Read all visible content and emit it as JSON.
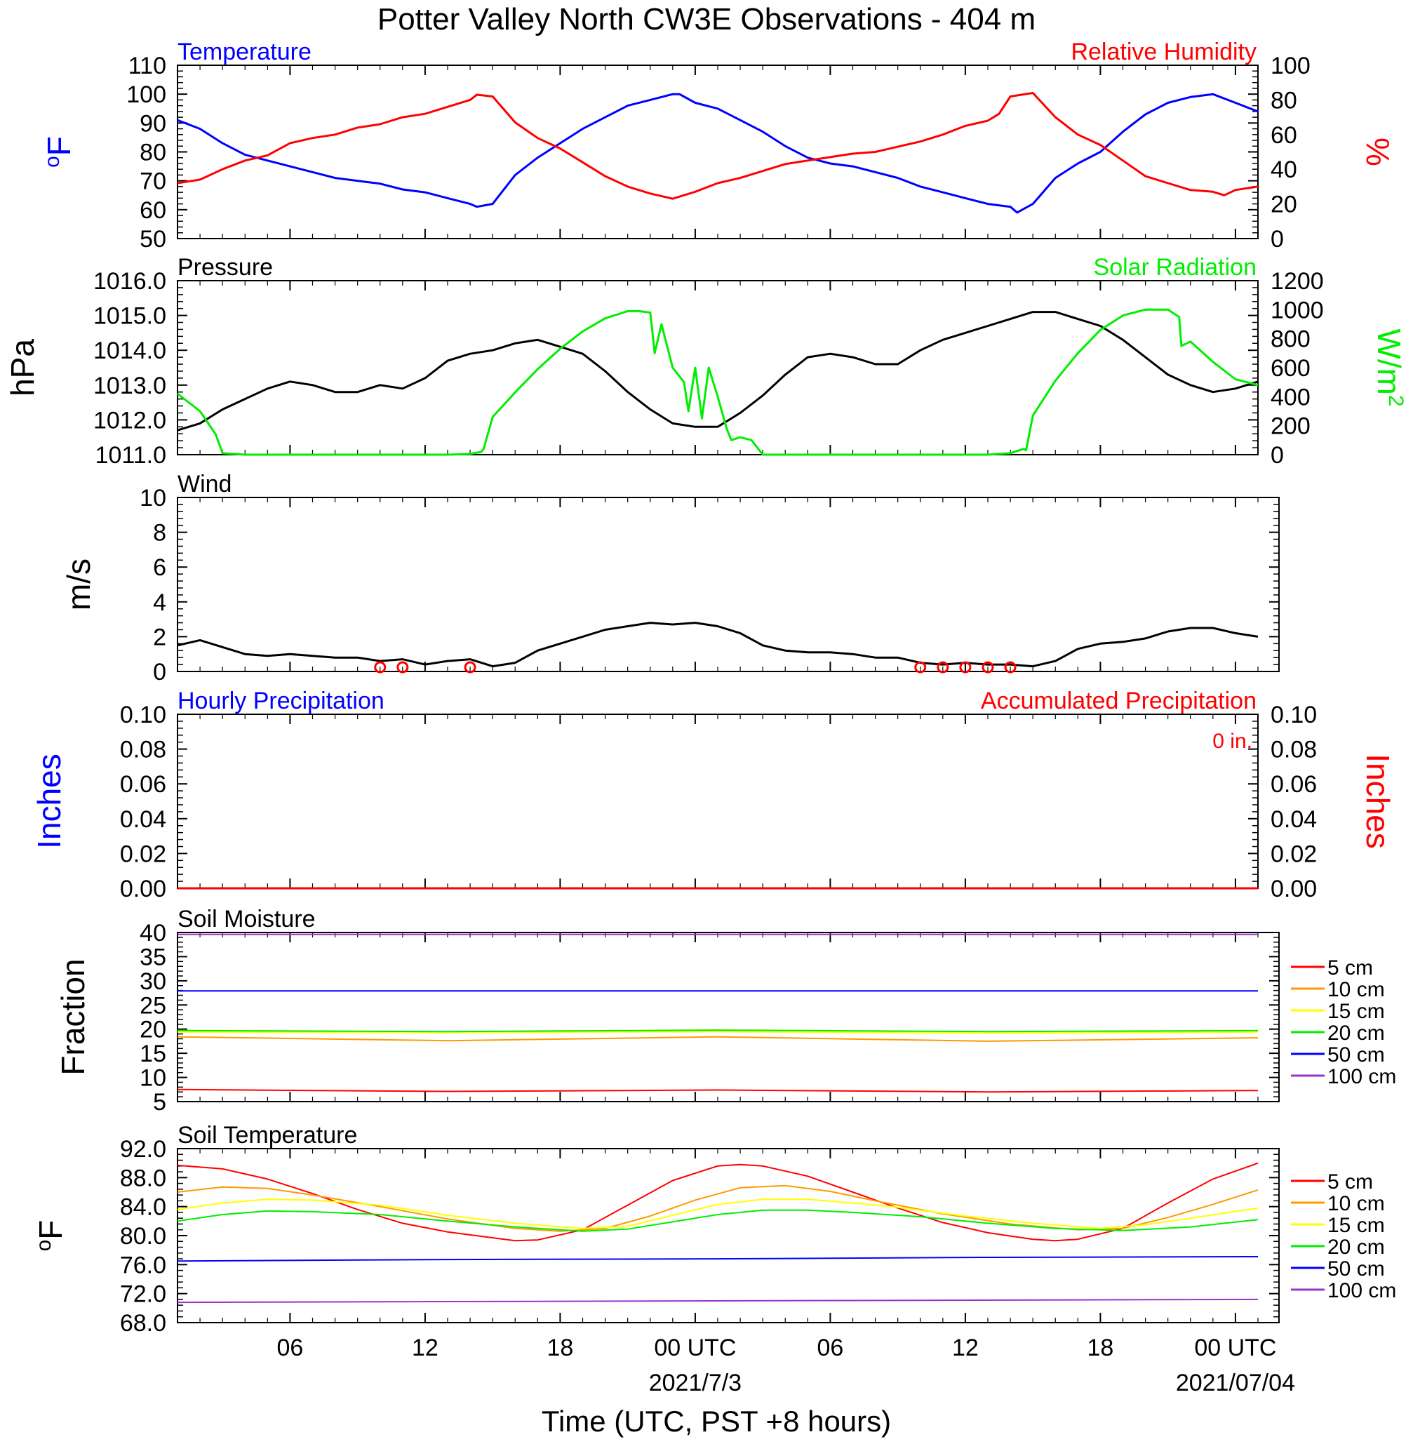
{
  "title": "Potter Valley North CW3E Observations - 404 m",
  "colors": {
    "blue": "#0000ff",
    "red": "#ff0000",
    "green": "#00ee00",
    "black": "#000000",
    "orange": "#ff9900",
    "yellow": "#ffff00",
    "purple": "#9933cc"
  },
  "time_axis": {
    "xlabel": "Time (UTC, PST +8 hours)",
    "range_hours": [
      0,
      48
    ],
    "ticks": [
      {
        "h": 5,
        "label": "06"
      },
      {
        "h": 11,
        "label": "12"
      },
      {
        "h": 17,
        "label": "18"
      },
      {
        "h": 23,
        "label": "00 UTC"
      },
      {
        "h": 29,
        "label": "06"
      },
      {
        "h": 35,
        "label": "12"
      },
      {
        "h": 41,
        "label": "18"
      },
      {
        "h": 47,
        "label": "00 UTC"
      }
    ],
    "date_labels": [
      {
        "h": 23,
        "label": "2021/7/3"
      },
      {
        "h": 47,
        "label": "2021/07/04"
      }
    ]
  },
  "chart_data": [
    {
      "id": "temp_rh",
      "type": "line",
      "left_title": "Temperature",
      "right_title": "Relative Humidity",
      "ylabel": "oF",
      "y2label": "%",
      "ylim": [
        50,
        110
      ],
      "y2lim": [
        0,
        100
      ],
      "yticks": [
        "50",
        "60",
        "70",
        "80",
        "90",
        "100",
        "110"
      ],
      "y2ticks": [
        "0",
        "20",
        "40",
        "60",
        "80",
        "100"
      ],
      "series": [
        {
          "name": "Temperature",
          "color": "blue",
          "axis": "left",
          "x": [
            0,
            1,
            2,
            3,
            4,
            5,
            6,
            7,
            8,
            9,
            10,
            11,
            12,
            13,
            13.3,
            14,
            15,
            16,
            17,
            18,
            19,
            20,
            21,
            22,
            22.3,
            23,
            24,
            25,
            26,
            27,
            28,
            29,
            30,
            31,
            32,
            33,
            34,
            35,
            36,
            37,
            37.3,
            38,
            39,
            40,
            41,
            42,
            43,
            44,
            45,
            46,
            47,
            48
          ],
          "y": [
            91,
            88,
            83,
            79,
            77,
            75,
            73,
            71,
            70,
            69,
            67,
            66,
            64,
            62,
            61,
            62,
            72,
            78,
            83,
            88,
            92,
            96,
            98,
            100,
            100,
            97,
            95,
            91,
            87,
            82,
            78,
            76,
            75,
            73,
            71,
            68,
            66,
            64,
            62,
            61,
            59,
            62,
            71,
            76,
            80,
            87,
            93,
            97,
            99,
            100,
            97,
            94
          ]
        },
        {
          "name": "Relative Humidity",
          "color": "red",
          "axis": "right",
          "x": [
            0,
            1,
            2,
            3,
            4,
            5,
            6,
            7,
            8,
            9,
            10,
            11,
            12,
            13,
            13.3,
            14,
            15,
            16,
            17,
            18,
            19,
            20,
            21,
            22,
            23,
            24,
            25,
            26,
            27,
            28,
            29,
            30,
            31,
            32,
            33,
            34,
            35,
            36,
            36.5,
            37,
            38,
            39,
            40,
            41,
            42,
            43,
            44,
            45,
            46,
            46.5,
            47,
            48
          ],
          "y": [
            32,
            34,
            40,
            45,
            48,
            55,
            58,
            60,
            64,
            66,
            70,
            72,
            76,
            80,
            83,
            82,
            67,
            58,
            52,
            44,
            36,
            30,
            26,
            23,
            27,
            32,
            35,
            39,
            43,
            45,
            47,
            49,
            50,
            53,
            56,
            60,
            65,
            68,
            72,
            82,
            84,
            70,
            60,
            54,
            45,
            36,
            32,
            28,
            27,
            25,
            28,
            30
          ]
        }
      ]
    },
    {
      "id": "pres_solar",
      "type": "line",
      "left_title": "Pressure",
      "right_title": "Solar Radiation",
      "ylabel": "hPa",
      "y2label": "W/m",
      "y2label_sup": "2",
      "ylim": [
        1011,
        1016
      ],
      "y2lim": [
        0,
        1200
      ],
      "yticks": [
        "1011.0",
        "1012.0",
        "1013.0",
        "1014.0",
        "1015.0",
        "1016.0"
      ],
      "y2ticks": [
        "0",
        "200",
        "400",
        "600",
        "800",
        "1000",
        "1200"
      ],
      "series": [
        {
          "name": "Pressure",
          "color": "black",
          "axis": "left",
          "x": [
            0,
            1,
            2,
            3,
            4,
            5,
            6,
            7,
            8,
            9,
            10,
            11,
            12,
            13,
            14,
            15,
            16,
            17,
            18,
            19,
            20,
            21,
            22,
            23,
            24,
            25,
            26,
            27,
            28,
            29,
            30,
            31,
            32,
            33,
            34,
            35,
            36,
            37,
            38,
            39,
            40,
            41,
            42,
            43,
            44,
            45,
            46,
            47,
            48
          ],
          "y": [
            1011.7,
            1011.9,
            1012.3,
            1012.6,
            1012.9,
            1013.1,
            1013.0,
            1012.8,
            1012.8,
            1013.0,
            1012.9,
            1013.2,
            1013.7,
            1013.9,
            1014.0,
            1014.2,
            1014.3,
            1014.1,
            1013.9,
            1013.4,
            1012.8,
            1012.3,
            1011.9,
            1011.8,
            1011.8,
            1012.2,
            1012.7,
            1013.3,
            1013.8,
            1013.9,
            1013.8,
            1013.6,
            1013.6,
            1014.0,
            1014.3,
            1014.5,
            1014.7,
            1014.9,
            1015.1,
            1015.1,
            1014.9,
            1014.7,
            1014.3,
            1013.8,
            1013.3,
            1013.0,
            1012.8,
            1012.9,
            1013.1
          ]
        },
        {
          "name": "Solar Radiation",
          "color": "green",
          "axis": "right",
          "x": [
            0,
            1,
            1.7,
            2,
            3,
            5,
            8,
            11,
            12,
            13,
            13.5,
            13.6,
            14,
            15,
            16,
            17,
            18,
            19,
            20,
            20.5,
            21.0,
            21.2,
            21.5,
            22,
            22.5,
            22.7,
            23,
            23.3,
            23.6,
            24,
            24.4,
            24.6,
            25,
            25.5,
            26,
            27,
            30,
            33,
            36,
            37,
            37.6,
            37.7,
            38,
            39,
            40,
            41,
            42,
            43,
            44,
            44.5,
            44.6,
            45,
            46,
            47,
            48
          ],
          "y": [
            420,
            300,
            140,
            10,
            0,
            0,
            0,
            0,
            0,
            5,
            20,
            40,
            260,
            430,
            590,
            730,
            850,
            940,
            990,
            990,
            980,
            700,
            900,
            600,
            500,
            300,
            600,
            250,
            600,
            400,
            180,
            100,
            120,
            100,
            0,
            0,
            0,
            0,
            0,
            10,
            40,
            30,
            270,
            510,
            700,
            860,
            960,
            1000,
            1000,
            950,
            750,
            780,
            640,
            520,
            480
          ]
        }
      ]
    },
    {
      "id": "wind",
      "type": "line",
      "left_title": "Wind",
      "ylabel": "m/s",
      "ylim": [
        0,
        10
      ],
      "yticks": [
        "0",
        "2",
        "4",
        "6",
        "8",
        "10"
      ],
      "series": [
        {
          "name": "Wind",
          "color": "black",
          "axis": "left",
          "x": [
            0,
            1,
            2,
            3,
            4,
            5,
            6,
            7,
            8,
            9,
            10,
            11,
            12,
            13,
            14,
            15,
            16,
            17,
            18,
            19,
            20,
            21,
            22,
            23,
            24,
            25,
            26,
            27,
            28,
            29,
            30,
            31,
            32,
            33,
            34,
            35,
            36,
            37,
            38,
            39,
            40,
            41,
            42,
            43,
            44,
            45,
            46,
            47,
            48
          ],
          "y": [
            1.5,
            1.8,
            1.4,
            1.0,
            0.9,
            1.0,
            0.9,
            0.8,
            0.8,
            0.6,
            0.7,
            0.4,
            0.6,
            0.7,
            0.3,
            0.5,
            1.2,
            1.6,
            2.0,
            2.4,
            2.6,
            2.8,
            2.7,
            2.8,
            2.6,
            2.2,
            1.5,
            1.2,
            1.1,
            1.1,
            1.0,
            0.8,
            0.8,
            0.5,
            0.4,
            0.5,
            0.4,
            0.4,
            0.3,
            0.6,
            1.3,
            1.6,
            1.7,
            1.9,
            2.3,
            2.5,
            2.5,
            2.2,
            2.0
          ]
        }
      ],
      "calm_hours": [
        9,
        10,
        13,
        33,
        34,
        35,
        36,
        37
      ]
    },
    {
      "id": "precip",
      "type": "line",
      "left_title": "Hourly Precipitation",
      "right_title": "Accumulated Precipitation",
      "annotation": "0 in.",
      "ylabel": "Inches",
      "y2label": "Inches",
      "ylim": [
        0,
        0.1
      ],
      "y2lim": [
        0,
        0.1
      ],
      "yticks": [
        "0.00",
        "0.02",
        "0.04",
        "0.06",
        "0.08",
        "0.10"
      ],
      "y2ticks": [
        "0.00",
        "0.02",
        "0.04",
        "0.06",
        "0.08",
        "0.10"
      ],
      "series": [
        {
          "name": "Hourly Precipitation",
          "color": "blue",
          "axis": "left",
          "x": [
            0,
            48
          ],
          "y": [
            0,
            0
          ]
        },
        {
          "name": "Accumulated Precipitation",
          "color": "red",
          "axis": "right",
          "x": [
            0,
            48
          ],
          "y": [
            0,
            0
          ]
        }
      ]
    },
    {
      "id": "soil_moist",
      "type": "line",
      "left_title": "Soil Moisture",
      "ylabel": "Fraction",
      "ylim": [
        5,
        40
      ],
      "yticks": [
        "5",
        "10",
        "15",
        "20",
        "25",
        "30",
        "35",
        "40"
      ],
      "series": [
        {
          "name": "5 cm",
          "color": "red",
          "x": [
            0,
            12,
            24,
            36,
            48
          ],
          "y": [
            7.5,
            7.1,
            7.4,
            7.0,
            7.3
          ]
        },
        {
          "name": "10 cm",
          "color": "orange",
          "x": [
            0,
            12,
            24,
            36,
            48
          ],
          "y": [
            18.4,
            17.6,
            18.4,
            17.5,
            18.2
          ]
        },
        {
          "name": "15 cm",
          "color": "yellow",
          "x": [
            0,
            12,
            24,
            36,
            48
          ],
          "y": [
            19.4,
            19.3,
            19.5,
            19.2,
            19.4
          ]
        },
        {
          "name": "20 cm",
          "color": "green",
          "x": [
            0,
            12,
            24,
            36,
            48
          ],
          "y": [
            19.7,
            19.5,
            19.8,
            19.5,
            19.7
          ]
        },
        {
          "name": "50 cm",
          "color": "blue",
          "x": [
            0,
            48
          ],
          "y": [
            27.9,
            27.9
          ]
        },
        {
          "name": "100 cm",
          "color": "purple",
          "x": [
            0,
            48
          ],
          "y": [
            39.6,
            39.6
          ]
        }
      ]
    },
    {
      "id": "soil_temp",
      "type": "line",
      "left_title": "Soil Temperature",
      "ylabel": "oF",
      "ylim": [
        68,
        92
      ],
      "yticks": [
        "68.0",
        "72.0",
        "76.0",
        "80.0",
        "84.0",
        "88.0",
        "92.0"
      ],
      "series": [
        {
          "name": "5 cm",
          "color": "red",
          "x": [
            0,
            2,
            4,
            6,
            8,
            10,
            12,
            14,
            15,
            16,
            18,
            20,
            22,
            24,
            25,
            26,
            28,
            30,
            32,
            34,
            36,
            38,
            39,
            40,
            42,
            44,
            46,
            48
          ],
          "y": [
            89.7,
            89.2,
            87.8,
            85.8,
            83.6,
            81.7,
            80.5,
            79.7,
            79.3,
            79.4,
            80.8,
            84.2,
            87.6,
            89.6,
            89.8,
            89.6,
            88.2,
            86.0,
            83.8,
            81.8,
            80.4,
            79.5,
            79.3,
            79.5,
            81.0,
            84.5,
            87.8,
            90.0
          ]
        },
        {
          "name": "10 cm",
          "color": "orange",
          "x": [
            0,
            2,
            4,
            6,
            9,
            12,
            15,
            17,
            19,
            21,
            23,
            25,
            27,
            29,
            31,
            34,
            37,
            40,
            42,
            44,
            46,
            48
          ],
          "y": [
            86.0,
            86.7,
            86.5,
            85.6,
            84.0,
            82.3,
            81.0,
            80.6,
            81.0,
            82.7,
            84.9,
            86.6,
            86.9,
            86.1,
            84.8,
            83.0,
            81.6,
            80.8,
            81.0,
            82.5,
            84.3,
            86.3
          ]
        },
        {
          "name": "15 cm",
          "color": "yellow",
          "x": [
            0,
            2,
            4,
            6,
            9,
            12,
            15,
            18,
            20,
            22,
            24,
            26,
            28,
            30,
            32,
            35,
            38,
            41,
            43,
            45,
            48
          ],
          "y": [
            83.6,
            84.5,
            85.0,
            84.9,
            84.2,
            82.8,
            81.7,
            81.0,
            81.3,
            82.8,
            84.3,
            85.0,
            85.0,
            84.5,
            83.9,
            82.7,
            81.7,
            81.0,
            81.5,
            82.4,
            83.8
          ]
        },
        {
          "name": "20 cm",
          "color": "green",
          "x": [
            0,
            2,
            4,
            6,
            9,
            12,
            15,
            18,
            20,
            22,
            24,
            26,
            28,
            30,
            33,
            36,
            39,
            42,
            45,
            48
          ],
          "y": [
            82.0,
            82.9,
            83.4,
            83.3,
            82.9,
            82.0,
            81.2,
            80.6,
            80.9,
            81.9,
            82.9,
            83.5,
            83.5,
            83.2,
            82.6,
            81.7,
            81.0,
            80.7,
            81.2,
            82.2
          ]
        },
        {
          "name": "50 cm",
          "color": "blue",
          "x": [
            0,
            12,
            24,
            36,
            48
          ],
          "y": [
            76.5,
            76.7,
            76.8,
            77.0,
            77.1
          ]
        },
        {
          "name": "100 cm",
          "color": "purple",
          "x": [
            0,
            24,
            48
          ],
          "y": [
            70.8,
            71.0,
            71.2
          ]
        }
      ]
    }
  ],
  "legend": [
    "5 cm",
    "10 cm",
    "15 cm",
    "20 cm",
    "50 cm",
    "100 cm"
  ]
}
